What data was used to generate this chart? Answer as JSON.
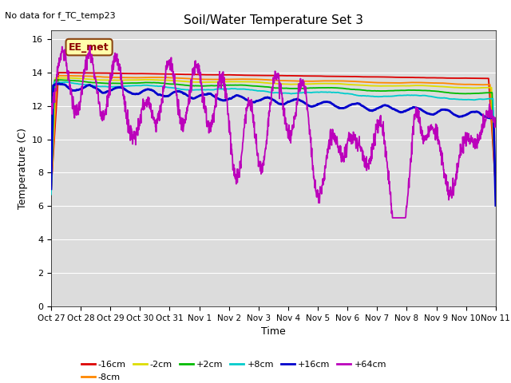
{
  "title": "Soil/Water Temperature Set 3",
  "subtitle": "No data for f_TC_temp23",
  "xlabel": "Time",
  "ylabel": "Temperature (C)",
  "ylim": [
    0,
    16.5
  ],
  "yticks": [
    0,
    2,
    4,
    6,
    8,
    10,
    12,
    14,
    16
  ],
  "xtick_labels": [
    "Oct 27",
    "Oct 28",
    "Oct 29",
    "Oct 30",
    "Oct 31",
    "Nov 1",
    "Nov 2",
    "Nov 3",
    "Nov 4",
    "Nov 5",
    "Nov 6",
    "Nov 7",
    "Nov 8",
    "Nov 9",
    "Nov 10",
    "Nov 11"
  ],
  "legend_label": "EE_met",
  "bg_color": "#dcdcdc",
  "series": {
    "-16cm": {
      "color": "#dd0000",
      "lw": 1.3
    },
    "-8cm": {
      "color": "#ff8800",
      "lw": 1.3
    },
    "-2cm": {
      "color": "#dddd00",
      "lw": 1.3
    },
    "+2cm": {
      "color": "#00bb00",
      "lw": 1.3
    },
    "+8cm": {
      "color": "#00cccc",
      "lw": 1.3
    },
    "+16cm": {
      "color": "#0000cc",
      "lw": 2.0
    },
    "+64cm": {
      "color": "#bb00bb",
      "lw": 1.3
    }
  }
}
